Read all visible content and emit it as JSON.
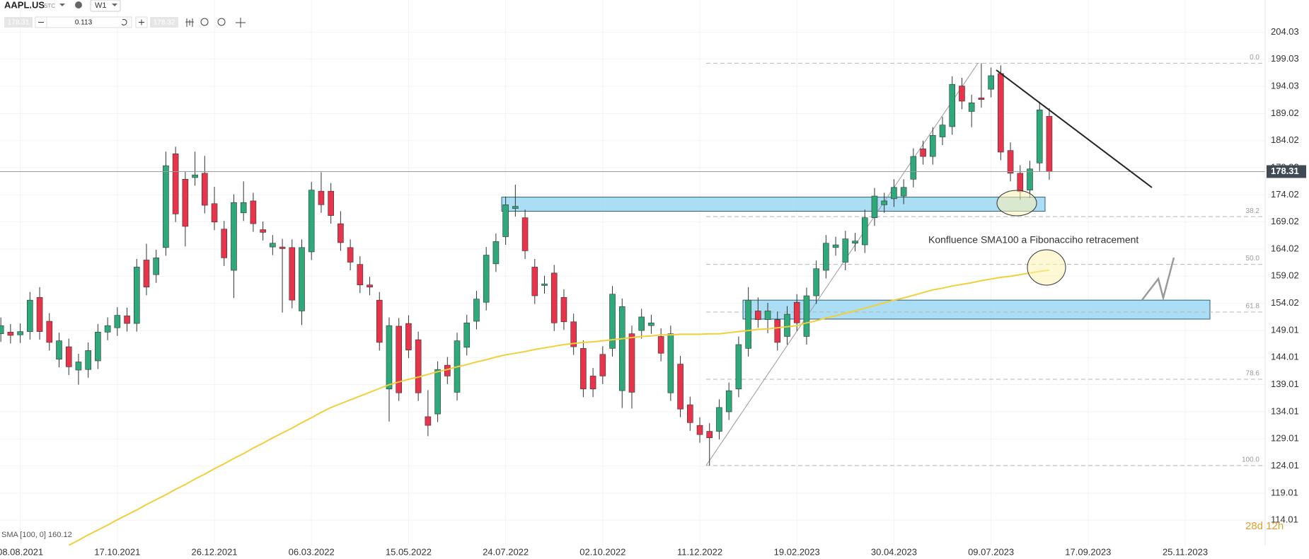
{
  "toolbar": {
    "symbol": "AAPL.US",
    "symbol_tag": "STC",
    "interval": "W1",
    "bid": 178.31,
    "ask": 178.32,
    "volume": "0.113"
  },
  "chart_data": {
    "type": "candlestick",
    "candles": [
      [
        148.4,
        151.4,
        146.9,
        149.9
      ],
      [
        148.7,
        150.2,
        146.6,
        148.1
      ],
      [
        148.2,
        150.3,
        146.7,
        148.8
      ],
      [
        148.8,
        156.1,
        147.3,
        154.6
      ],
      [
        155.1,
        157.0,
        147.3,
        148.8
      ],
      [
        150.7,
        152.2,
        145.3,
        146.8
      ],
      [
        143.7,
        148.6,
        142.2,
        147.1
      ],
      [
        146.0,
        147.5,
        140.8,
        142.3
      ],
      [
        141.7,
        144.7,
        139.0,
        143.2
      ],
      [
        141.8,
        146.8,
        140.3,
        145.3
      ],
      [
        143.4,
        150.2,
        141.9,
        148.7
      ],
      [
        148.7,
        151.4,
        147.2,
        149.9
      ],
      [
        149.5,
        153.3,
        148.0,
        151.8
      ],
      [
        151.7,
        153.2,
        148.8,
        150.3
      ],
      [
        150.3,
        162.2,
        148.8,
        160.7
      ],
      [
        162.0,
        165.0,
        155.5,
        157.0
      ],
      [
        159.3,
        163.9,
        157.8,
        162.4
      ],
      [
        164.3,
        182.0,
        162.8,
        179.4
      ],
      [
        181.6,
        182.9,
        169.0,
        170.5
      ],
      [
        176.9,
        178.4,
        164.5,
        168.2
      ],
      [
        177.2,
        182.0,
        175.7,
        177.7
      ],
      [
        178.0,
        181.2,
        170.6,
        172.1
      ],
      [
        172.4,
        175.5,
        167.5,
        169.0
      ],
      [
        167.7,
        169.2,
        160.9,
        162.4
      ],
      [
        160.1,
        174.1,
        155.0,
        172.6
      ],
      [
        170.7,
        176.5,
        169.2,
        172.6
      ],
      [
        172.9,
        174.4,
        167.2,
        168.7
      ],
      [
        167.6,
        169.1,
        165.6,
        167.1
      ],
      [
        164.4,
        166.6,
        162.9,
        165.1
      ],
      [
        164.4,
        165.9,
        152.3,
        164.1
      ],
      [
        164.3,
        165.8,
        153.1,
        154.6
      ],
      [
        152.6,
        165.8,
        150.0,
        164.3
      ],
      [
        163.5,
        176.4,
        162.0,
        174.9
      ],
      [
        174.7,
        178.2,
        170.7,
        172.2
      ],
      [
        174.7,
        176.2,
        168.7,
        170.2
      ],
      [
        168.7,
        171.0,
        163.7,
        165.2
      ],
      [
        164.3,
        165.8,
        160.1,
        161.6
      ],
      [
        161.2,
        162.7,
        155.9,
        157.4
      ],
      [
        157.4,
        158.9,
        155.5,
        157.0
      ],
      [
        154.6,
        156.1,
        145.3,
        146.8
      ],
      [
        138.2,
        151.4,
        132.2,
        149.9
      ],
      [
        149.8,
        151.3,
        136.0,
        137.5
      ],
      [
        150.3,
        151.8,
        143.9,
        145.4
      ],
      [
        147.3,
        148.8,
        136.0,
        137.5
      ],
      [
        133.1,
        138.0,
        129.5,
        131.5
      ],
      [
        133.6,
        143.3,
        132.1,
        141.8
      ],
      [
        142.6,
        144.1,
        139.1,
        140.6
      ],
      [
        137.6,
        148.6,
        136.1,
        147.1
      ],
      [
        145.9,
        151.9,
        144.4,
        150.4
      ],
      [
        150.7,
        156.3,
        149.2,
        154.8
      ],
      [
        154.2,
        164.4,
        152.7,
        162.9
      ],
      [
        161.3,
        166.9,
        159.8,
        165.4
      ],
      [
        166.3,
        173.7,
        164.8,
        172.2
      ],
      [
        171.5,
        175.9,
        170.0,
        171.9
      ],
      [
        169.8,
        171.3,
        162.2,
        163.7
      ],
      [
        160.7,
        162.2,
        153.9,
        155.4
      ],
      [
        157.3,
        159.1,
        155.8,
        157.6
      ],
      [
        159.6,
        161.1,
        148.9,
        150.4
      ],
      [
        155.1,
        156.6,
        149.1,
        150.6
      ],
      [
        150.6,
        152.1,
        144.5,
        146.0
      ],
      [
        145.7,
        147.2,
        136.7,
        138.2
      ],
      [
        140.6,
        142.1,
        136.7,
        138.2
      ],
      [
        144.6,
        146.1,
        139.1,
        140.6
      ],
      [
        145.7,
        157.2,
        144.2,
        155.7
      ],
      [
        137.9,
        154.9,
        134.7,
        153.4
      ],
      [
        148.4,
        149.9,
        134.6,
        137.6
      ],
      [
        149.0,
        153.0,
        147.5,
        151.5
      ],
      [
        149.9,
        151.9,
        148.4,
        150.4
      ],
      [
        147.9,
        149.4,
        143.3,
        144.8
      ],
      [
        137.5,
        149.9,
        136.0,
        148.4
      ],
      [
        142.8,
        144.3,
        133.0,
        134.5
      ],
      [
        135.3,
        136.8,
        130.5,
        132.0
      ],
      [
        131.5,
        133.0,
        128.3,
        129.8
      ],
      [
        130.4,
        131.9,
        124.1,
        129.2
      ],
      [
        130.4,
        136.3,
        128.9,
        134.8
      ],
      [
        134.0,
        139.4,
        132.5,
        137.9
      ],
      [
        138.2,
        147.9,
        136.7,
        146.4
      ],
      [
        145.7,
        157.0,
        144.2,
        154.6
      ],
      [
        152.6,
        155.1,
        149.5,
        151.0
      ],
      [
        151.0,
        154.1,
        148.5,
        152.6
      ],
      [
        151.0,
        152.5,
        145.3,
        146.8
      ],
      [
        147.9,
        153.5,
        146.4,
        152.0
      ],
      [
        154.2,
        155.7,
        148.9,
        150.4
      ],
      [
        147.9,
        156.9,
        146.4,
        155.4
      ],
      [
        155.4,
        161.9,
        153.9,
        160.4
      ],
      [
        160.1,
        166.6,
        158.6,
        165.1
      ],
      [
        164.3,
        166.3,
        162.8,
        164.8
      ],
      [
        161.6,
        167.4,
        160.1,
        165.9
      ],
      [
        165.1,
        167.0,
        163.6,
        165.5
      ],
      [
        164.8,
        171.3,
        163.3,
        169.8
      ],
      [
        169.8,
        175.3,
        168.3,
        173.8
      ],
      [
        172.2,
        174.4,
        170.7,
        172.9
      ],
      [
        173.3,
        176.9,
        171.8,
        175.4
      ],
      [
        173.8,
        176.9,
        172.3,
        175.4
      ],
      [
        176.9,
        182.6,
        175.4,
        181.1
      ],
      [
        182.5,
        184.0,
        179.6,
        181.1
      ],
      [
        181.1,
        186.5,
        179.6,
        185.0
      ],
      [
        184.7,
        188.4,
        183.2,
        186.9
      ],
      [
        186.6,
        195.9,
        185.1,
        194.4
      ],
      [
        194.1,
        195.6,
        189.8,
        191.3
      ],
      [
        189.4,
        192.5,
        186.5,
        191.0
      ],
      [
        191.9,
        198.3,
        190.1,
        191.6
      ],
      [
        193.5,
        197.5,
        192.0,
        196.0
      ],
      [
        196.4,
        197.9,
        180.4,
        181.9
      ],
      [
        182.2,
        183.7,
        176.5,
        178.0
      ],
      [
        178.0,
        179.5,
        173.1,
        174.6
      ],
      [
        174.9,
        180.3,
        173.4,
        178.8
      ],
      [
        179.9,
        191.2,
        178.4,
        189.7
      ],
      [
        188.5,
        190.0,
        176.8,
        178.31
      ]
    ],
    "up_color": "#2ea97a",
    "down_color": "#e8344b",
    "sma": {
      "name": "SMA [100, 0]",
      "color": "#f2cf3a",
      "values": [
        null,
        null,
        null,
        null,
        null,
        null,
        null,
        109.4,
        110.3,
        111.3,
        112.2,
        113.1,
        114.1,
        115.0,
        115.9,
        116.9,
        117.8,
        118.7,
        119.7,
        120.6,
        121.6,
        122.5,
        123.5,
        124.4,
        125.4,
        126.3,
        127.3,
        128.2,
        129.2,
        130.1,
        131.0,
        132.0,
        132.9,
        133.9,
        134.8,
        135.5,
        136.2,
        136.9,
        137.6,
        138.3,
        139.0,
        139.5,
        140.0,
        140.4,
        140.9,
        141.4,
        141.8,
        142.3,
        142.7,
        143.2,
        143.6,
        144.1,
        144.5,
        144.8,
        145.1,
        145.5,
        145.8,
        146.1,
        146.4,
        146.6,
        146.8,
        146.9,
        147.1,
        147.3,
        147.5,
        147.7,
        147.9,
        148.0,
        148.2,
        148.2,
        148.3,
        148.3,
        148.3,
        148.4,
        148.4,
        148.6,
        148.8,
        149.0,
        149.2,
        149.3,
        149.5,
        149.7,
        149.9,
        150.4,
        150.8,
        151.3,
        151.7,
        152.2,
        152.6,
        153.1,
        153.6,
        154.1,
        154.6,
        155.0,
        155.5,
        156.0,
        156.5,
        156.8,
        157.2,
        157.5,
        157.8,
        158.2,
        158.5,
        158.8,
        159.0,
        159.3,
        159.6,
        159.9,
        160.12
      ]
    },
    "last_price": 178.31,
    "x_labels": [
      "08.08.2021",
      "17.10.2021",
      "26.12.2021",
      "06.03.2022",
      "15.05.2022",
      "24.07.2022",
      "02.10.2022",
      "11.12.2022",
      "19.02.2023",
      "30.04.2023",
      "09.07.2023",
      "17.09.2023",
      "25.11.2023"
    ],
    "ylim": [
      109.33,
      209.96
    ],
    "yticks": [
      204.03,
      199.03,
      194.03,
      189.02,
      184.02,
      179.02,
      174.02,
      169.02,
      164.02,
      159.02,
      154.02,
      149.01,
      144.01,
      139.01,
      134.01,
      129.01,
      124.01,
      119.01,
      114.01
    ],
    "fibonacci": [
      {
        "label": "0.0",
        "value": 198.3
      },
      {
        "label": "38.2",
        "value": 170.0
      },
      {
        "label": "50.0",
        "value": 161.2
      },
      {
        "label": "61.8",
        "value": 152.4
      },
      {
        "label": "78.6",
        "value": 140.0
      },
      {
        "label": "100.0",
        "value": 124.1
      }
    ],
    "zones": [
      [
        173.6,
        171.0
      ],
      [
        154.6,
        151.1
      ]
    ],
    "annotation": "Konfluence SMA100 a Fibonacciho retracement",
    "countdown": "28d 12h"
  }
}
